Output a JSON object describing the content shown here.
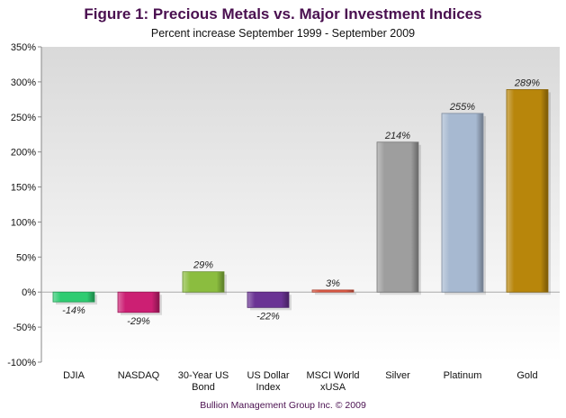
{
  "chart_data": {
    "type": "bar",
    "title": "Figure 1: Precious Metals vs. Major Investment Indices",
    "subtitle": "Percent increase September 1999 - September 2009",
    "categories": [
      [
        "DJIA"
      ],
      [
        "NASDAQ"
      ],
      [
        "30-Year US",
        "Bond"
      ],
      [
        "US Dollar",
        "Index"
      ],
      [
        "MSCI World",
        "xUSA"
      ],
      [
        "Silver"
      ],
      [
        "Platinum"
      ],
      [
        "Gold"
      ]
    ],
    "values": [
      -14,
      -29,
      29,
      -22,
      3,
      214,
      255,
      289
    ],
    "data_labels": [
      "-14%",
      "-29%",
      "29%",
      "-22%",
      "3%",
      "214%",
      "255%",
      "289%"
    ],
    "bar_colors": [
      "#2ecc71",
      "#cc1f73",
      "#8bbd3f",
      "#6a3394",
      "#e05a45",
      "#9e9e9e",
      "#a7b9d1",
      "#b8860b"
    ],
    "ylim": [
      -100,
      350
    ],
    "yticks": [
      -100,
      -50,
      0,
      50,
      100,
      150,
      200,
      250,
      300,
      350
    ],
    "ytick_suffix": "%",
    "xlabel": "",
    "ylabel": "",
    "grid": false,
    "legend": "none"
  },
  "footer": "Bullion Management Group Inc. © 2009"
}
